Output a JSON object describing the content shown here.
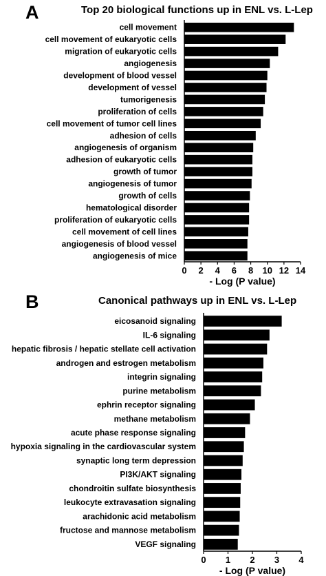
{
  "chart_data": [
    {
      "type": "bar",
      "orientation": "horizontal",
      "panel": "A",
      "title": "Top 20 biological functions up in ENL vs. L-Lep",
      "xlabel": "- Log (P value)",
      "xlim": [
        0,
        14
      ],
      "xticks": [
        "0",
        "2",
        "4",
        "6",
        "8",
        "10",
        "12",
        "14"
      ],
      "grid": false,
      "categories": [
        "cell movement",
        "cell movement of eukaryotic cells",
        "migration of eukaryotic cells",
        "angiogenesis",
        "development of blood vessel",
        "development of vessel",
        "tumorigenesis",
        "proliferation of cells",
        "cell movement of tumor cell lines",
        "adhesion of cells",
        "angiogenesis of organism",
        "adhesion of eukaryotic cells",
        "growth of tumor",
        "angiogenesis of tumor",
        "growth of cells",
        "hematological disorder",
        "proliferation of eukaryotic cells",
        "cell movement of cell lines",
        "angiogenesis of blood vessel",
        "angiogenesis of mice"
      ],
      "values": [
        13.2,
        12.2,
        11.3,
        10.3,
        10.0,
        9.9,
        9.7,
        9.5,
        9.2,
        8.6,
        8.3,
        8.2,
        8.2,
        8.1,
        7.9,
        7.8,
        7.8,
        7.7,
        7.6,
        7.6
      ]
    },
    {
      "type": "bar",
      "orientation": "horizontal",
      "panel": "B",
      "title": "Canonical pathways up in ENL vs. L-Lep",
      "xlabel": "- Log (P value)",
      "xlim": [
        0,
        4
      ],
      "xticks": [
        "0",
        "1",
        "2",
        "3",
        "4"
      ],
      "grid": false,
      "categories": [
        "eicosanoid signaling",
        "IL-6 signaling",
        "hepatic fibrosis / hepatic stellate cell activation",
        "androgen and estrogen metabolism",
        "integrin signaling",
        "purine metabolism",
        "ephrin receptor signaling",
        "methane metabolism",
        "acute phase response signaling",
        "hypoxia signaling in the cardiovascular system",
        "synaptic long term depression",
        "PI3K/AKT signaling",
        "chondroitin sulfate biosynthesis",
        "leukocyte extravasation signaling",
        "arachidonic acid metabolism",
        "fructose and mannose metabolism",
        "VEGF signaling"
      ],
      "values": [
        3.2,
        2.7,
        2.6,
        2.45,
        2.4,
        2.35,
        2.1,
        1.9,
        1.7,
        1.65,
        1.6,
        1.55,
        1.52,
        1.5,
        1.48,
        1.45,
        1.4
      ]
    }
  ]
}
